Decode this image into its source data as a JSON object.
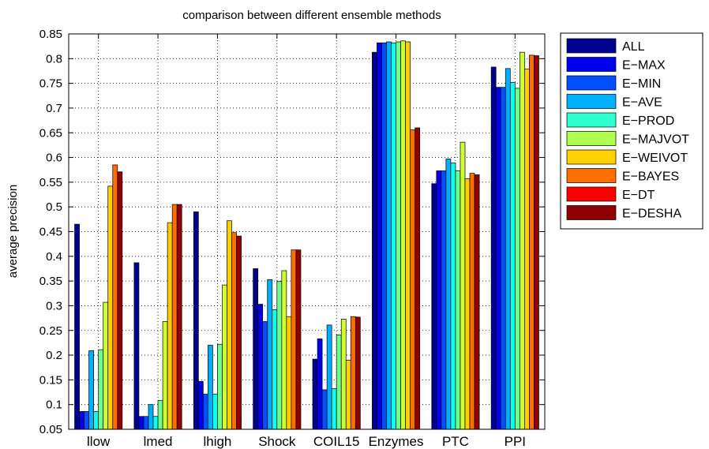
{
  "chart_data": {
    "type": "bar",
    "title": "comparison between different ensemble methods",
    "xlabel": "",
    "ylabel": "average precision",
    "ylim": [
      0.05,
      0.85
    ],
    "yticks": [
      "0.05",
      "0.1",
      "0.15",
      "0.2",
      "0.25",
      "0.3",
      "0.35",
      "0.4",
      "0.45",
      "0.5",
      "0.55",
      "0.6",
      "0.65",
      "0.7",
      "0.75",
      "0.8",
      "0.85"
    ],
    "grid": true,
    "legend_position": "outside-right",
    "categories": [
      "llow",
      "lmed",
      "lhigh",
      "Shock",
      "COIL15",
      "Enzymes",
      "PTC",
      "PPI"
    ],
    "series": [
      {
        "name": "ALL",
        "color": "#00008f",
        "values": [
          0.465,
          0.387,
          0.49,
          0.375,
          0.192,
          0.813,
          0.547,
          0.783
        ]
      },
      {
        "name": "E−MAX",
        "color": "#0000ef",
        "values": [
          0.086,
          0.076,
          0.147,
          0.303,
          0.233,
          0.832,
          0.573,
          0.742
        ]
      },
      {
        "name": "E−MIN",
        "color": "#0050ff",
        "values": [
          0.086,
          0.076,
          0.121,
          0.268,
          0.13,
          0.832,
          0.573,
          0.742
        ]
      },
      {
        "name": "E−AVE",
        "color": "#00afff",
        "values": [
          0.209,
          0.1,
          0.22,
          0.353,
          0.261,
          0.834,
          0.597,
          0.78
        ]
      },
      {
        "name": "E−PROD",
        "color": "#0fffef",
        "values": [
          0.086,
          0.076,
          0.121,
          0.292,
          0.132,
          0.832,
          0.589,
          0.752
        ]
      },
      {
        "name": "E−MAJVOT",
        "color": "#6fff8f",
        "values": [
          0.211,
          0.108,
          0.222,
          0.349,
          0.241,
          0.834,
          0.573,
          0.74
        ]
      },
      {
        "name": "E−WEIVOT",
        "color": "#cfff30",
        "values": [
          0.307,
          0.268,
          0.342,
          0.371,
          0.273,
          0.836,
          0.631,
          0.813
        ]
      },
      {
        "name": "E−BAYES",
        "color": "#ffcf00",
        "values": [
          0.542,
          0.468,
          0.472,
          0.278,
          0.19,
          0.834,
          0.557,
          0.779
        ]
      },
      {
        "name": "E−DT",
        "color": "#ff6f00",
        "values": [
          0.585,
          0.505,
          0.448,
          0.413,
          0.278,
          0.656,
          0.568,
          0.807
        ]
      },
      {
        "name": "E−DESHA",
        "color": "#8f0000",
        "values": [
          0.571,
          0.505,
          0.441,
          0.413,
          0.277,
          0.66,
          0.565,
          0.806
        ]
      }
    ],
    "legend_colors": [
      "#00008f",
      "#0000ef",
      "#0050ff",
      "#00afff",
      "#30ffcf",
      "#afff50",
      "#ffcf00",
      "#ff6f00",
      "#ff0000",
      "#8f0000"
    ]
  }
}
